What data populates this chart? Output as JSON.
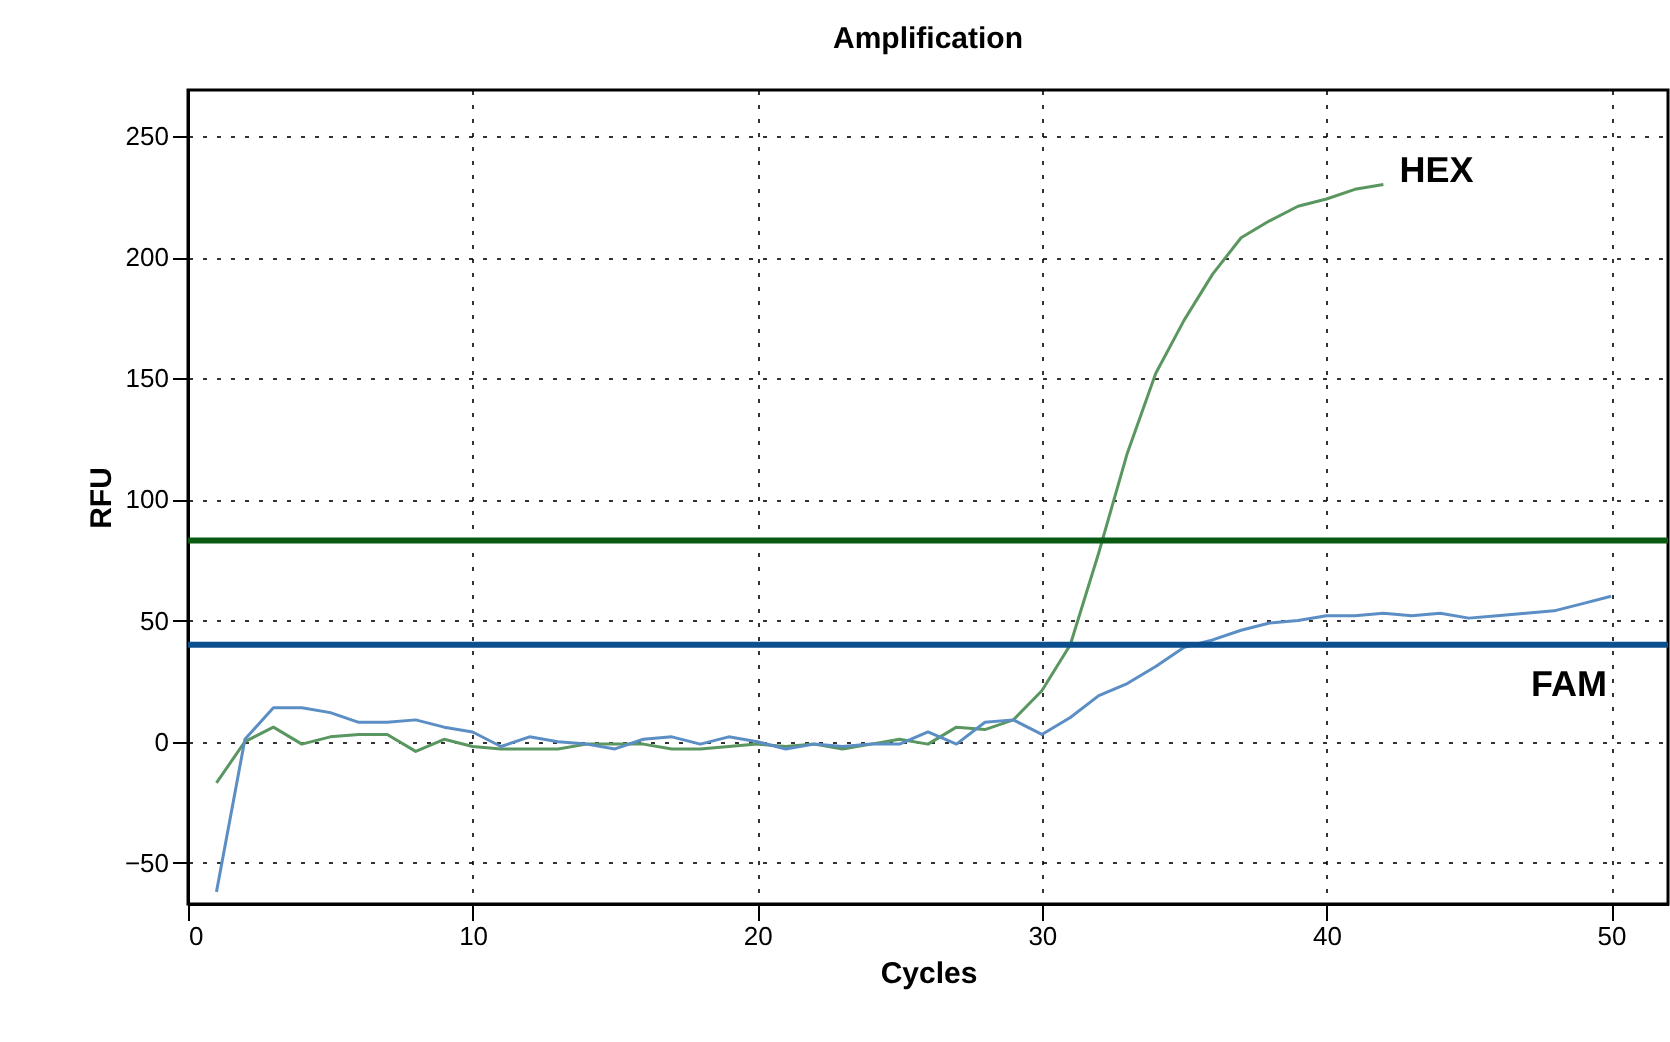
{
  "chart_data": {
    "type": "line",
    "title": "Amplification",
    "xlabel": "Cycles",
    "ylabel": "RFU",
    "x": [
      1,
      2,
      3,
      4,
      5,
      6,
      7,
      8,
      9,
      10,
      11,
      12,
      13,
      14,
      15,
      16,
      17,
      18,
      19,
      20,
      21,
      22,
      23,
      24,
      25,
      26,
      27,
      28,
      29,
      30,
      31,
      32,
      33,
      34,
      35,
      36,
      37,
      38,
      39,
      40,
      41,
      42,
      43,
      44,
      45,
      46,
      47,
      48,
      49,
      50
    ],
    "series": [
      {
        "name": "HEX",
        "color": "#5a9660",
        "values": [
          -17,
          0,
          6,
          -1,
          2,
          3,
          3,
          -4,
          1,
          -2,
          -3,
          -3,
          -3,
          -1,
          -1,
          -1,
          -3,
          -3,
          -2,
          -1,
          -2,
          -1,
          -3,
          -1,
          1,
          -1,
          6,
          5,
          9,
          21,
          40,
          78,
          119,
          152,
          174,
          193,
          208,
          215,
          221,
          224,
          228,
          230,
          null,
          null,
          null,
          null,
          null,
          null,
          null,
          null
        ]
      },
      {
        "name": "FAM",
        "color": "#5b8ec4",
        "values": [
          -62,
          1,
          14,
          14,
          12,
          8,
          8,
          9,
          6,
          4,
          -2,
          2,
          0,
          -1,
          -3,
          1,
          2,
          -1,
          2,
          0,
          -3,
          -1,
          -2,
          -1,
          -1,
          4,
          -1,
          8,
          9,
          3,
          10,
          19,
          24,
          31,
          39,
          42,
          46,
          49,
          50,
          52,
          52,
          53,
          52,
          53,
          51,
          52,
          53,
          54,
          57,
          60
        ]
      }
    ],
    "ref_lines": [
      {
        "axis": "y",
        "value": 83,
        "color": "#0b5a14"
      },
      {
        "axis": "y",
        "value": 40,
        "color": "#0b4f8f"
      }
    ],
    "xlim": [
      0,
      52
    ],
    "xticks": [
      0,
      10,
      20,
      30,
      40,
      50
    ],
    "ylim": [
      -67,
      269
    ],
    "yticks": [
      -50,
      0,
      50,
      100,
      150,
      200,
      250
    ],
    "grid": true,
    "legend": false,
    "line_style": "solid",
    "marker": "none"
  }
}
